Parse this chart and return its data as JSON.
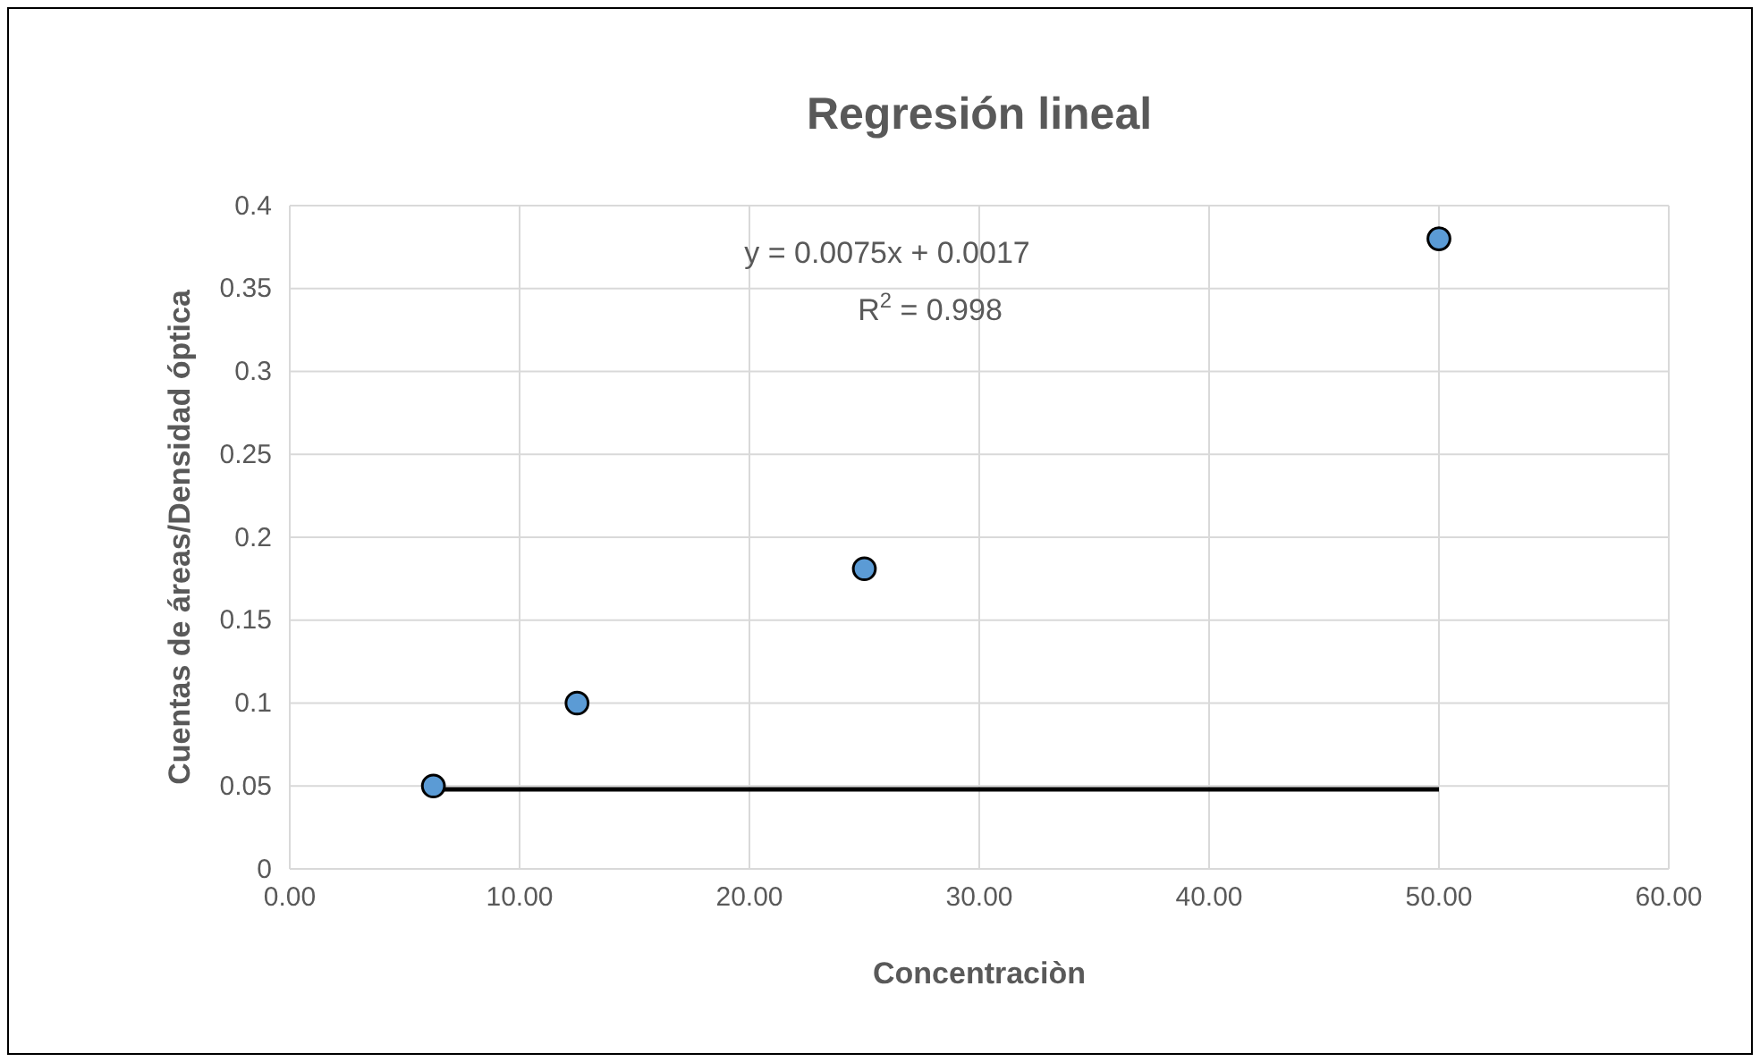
{
  "chart_data": {
    "type": "scatter",
    "title": "Regresión lineal",
    "xlabel": "Concentraciòn",
    "ylabel": "Cuentas de áreas/Densidad óptica",
    "series": [
      {
        "color": "#5b9bd5",
        "x": [
          6.25,
          12.5,
          25,
          50
        ],
        "values": [
          0.05,
          0.1,
          0.181,
          0.38
        ]
      },
      {
        "type": "line",
        "marker": "none",
        "color": "#000000",
        "x": [
          6.25,
          50
        ],
        "values": [
          0.048,
          0.048
        ]
      }
    ],
    "annotations": [
      {
        "text": "y = 0.0075x + 0.0017"
      },
      {
        "text": "R$^{2}$ = 0.998"
      }
    ],
    "xlim": [
      0,
      60
    ],
    "xticks": [
      {
        "value": 0,
        "label": "0.00"
      },
      {
        "value": 10,
        "label": "10.00"
      },
      {
        "value": 20,
        "label": "20.00"
      },
      {
        "value": 30,
        "label": "30.00"
      },
      {
        "value": 40,
        "label": "40.00"
      },
      {
        "value": 50,
        "label": "50.00"
      },
      {
        "value": 60,
        "label": "60.00"
      }
    ],
    "ylim": [
      0,
      0.4
    ],
    "yticks": [
      0,
      0.05,
      0.1,
      0.15,
      0.2,
      0.25,
      0.3,
      0.35,
      0.4
    ],
    "grid": true,
    "marker": "circle",
    "line_style": "solid"
  }
}
